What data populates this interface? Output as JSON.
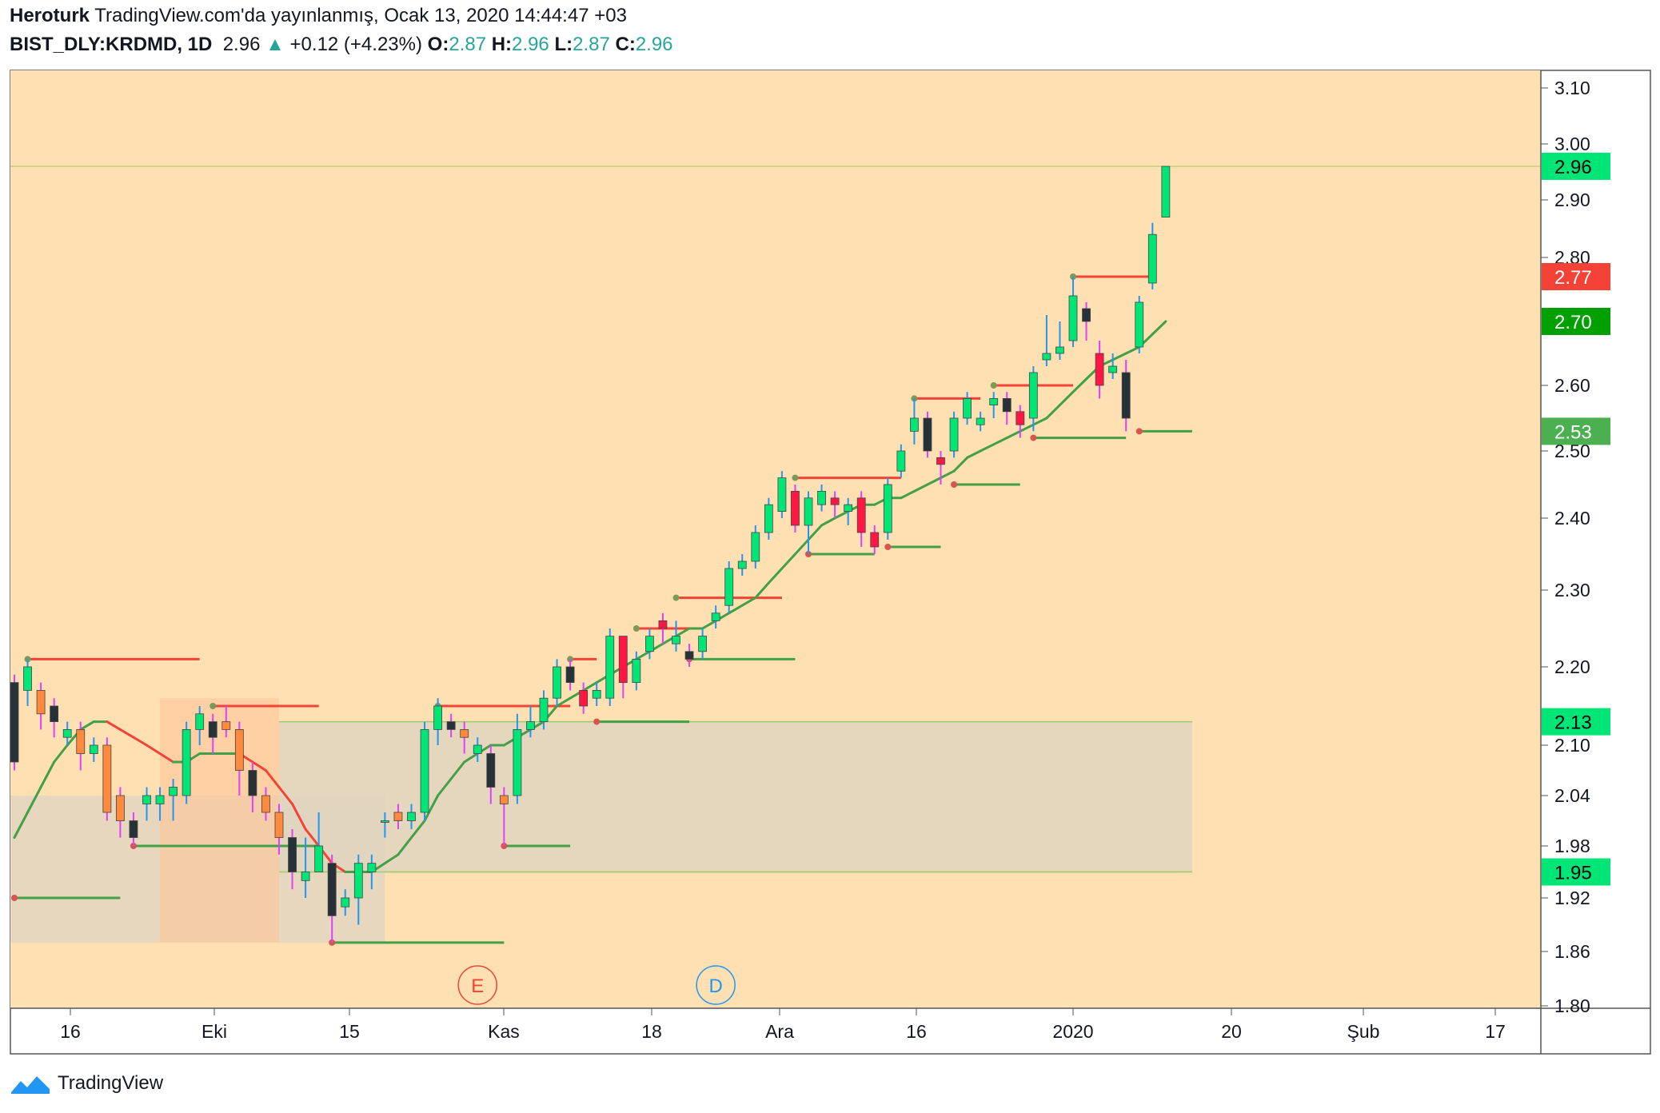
{
  "header": {
    "author": "Heroturk",
    "published": "TradingView.com'da yayınlanmış, Ocak 13, 2020 14:44:47 +03",
    "symbol": "BIST_DLY:KRDMD, 1D",
    "last": "2.96",
    "change": "+0.12 (+4.23%)",
    "o_label": "O:",
    "o_value": "2.87",
    "h_label": "H:",
    "h_value": "2.96",
    "l_label": "L:",
    "l_value": "2.87",
    "c_label": "C:",
    "c_value": "2.96"
  },
  "footer": {
    "brand": "TradingView"
  },
  "colors": {
    "background": "#ffe0b2",
    "up": "#00e676",
    "down_pink": "#ff1744",
    "down_orange": "#ff8a3d",
    "dark": "#263238",
    "ma_up": "#43a047",
    "ma_down": "#f44336",
    "resistance": "#f44336",
    "support": "#43a047",
    "zone": "#e0d5c0",
    "orange_zone": "#ffc49a"
  },
  "chart_data": {
    "type": "candlestick",
    "ylim": [
      1.8,
      3.13
    ],
    "y_ticks": [
      "3.10",
      "3.00",
      "2.90",
      "2.80",
      "2.60",
      "2.50",
      "2.40",
      "2.30",
      "2.20",
      "2.10",
      "2.04",
      "1.98",
      "1.92",
      "1.86",
      "1.80"
    ],
    "x_ticks": [
      "16",
      "Eki",
      "15",
      "Kas",
      "18",
      "Ara",
      "16",
      "2020",
      "20",
      "Şub",
      "17"
    ],
    "price_labels": [
      {
        "value": 2.96,
        "text": "2.96",
        "bg": "#00e676"
      },
      {
        "value": 2.77,
        "text": "2.77",
        "bg": "#f44336"
      },
      {
        "value": 2.7,
        "text": "2.70",
        "bg": "#00a000"
      },
      {
        "value": 2.53,
        "text": "2.53",
        "bg": "#4caf50"
      },
      {
        "value": 2.13,
        "text": "2.13",
        "bg": "#00e676"
      },
      {
        "value": 1.95,
        "text": "1.95",
        "bg": "#00e676"
      }
    ],
    "markers": [
      {
        "text": "E",
        "color": "#f44336",
        "x_index": 35
      },
      {
        "text": "D",
        "color": "#2196f3",
        "x_index": 53
      }
    ],
    "candles": [
      [
        2.18,
        2.08,
        2.19,
        2.07
      ],
      [
        2.17,
        2.2,
        2.21,
        2.15
      ],
      [
        2.17,
        2.14,
        2.18,
        2.12
      ],
      [
        2.15,
        2.13,
        2.16,
        2.11
      ],
      [
        2.11,
        2.12,
        2.13,
        2.1
      ],
      [
        2.12,
        2.09,
        2.13,
        2.07
      ],
      [
        2.09,
        2.1,
        2.11,
        2.08
      ],
      [
        2.1,
        2.02,
        2.11,
        2.01
      ],
      [
        2.04,
        2.01,
        2.05,
        1.99
      ],
      [
        2.01,
        1.99,
        2.02,
        1.98
      ],
      [
        2.03,
        2.04,
        2.05,
        2.01
      ],
      [
        2.03,
        2.04,
        2.05,
        2.01
      ],
      [
        2.04,
        2.05,
        2.06,
        2.01
      ],
      [
        2.04,
        2.12,
        2.13,
        2.03
      ],
      [
        2.12,
        2.14,
        2.15,
        2.1
      ],
      [
        2.13,
        2.11,
        2.14,
        2.09
      ],
      [
        2.13,
        2.12,
        2.15,
        2.11
      ],
      [
        2.12,
        2.07,
        2.13,
        2.04
      ],
      [
        2.07,
        2.04,
        2.08,
        2.02
      ],
      [
        2.04,
        2.02,
        2.05,
        2.01
      ],
      [
        2.02,
        1.99,
        2.03,
        1.97
      ],
      [
        1.99,
        1.95,
        2.0,
        1.93
      ],
      [
        1.94,
        1.95,
        1.99,
        1.92
      ],
      [
        1.95,
        1.98,
        2.02,
        1.96
      ],
      [
        1.96,
        1.9,
        1.97,
        1.87
      ],
      [
        1.91,
        1.92,
        1.93,
        1.9
      ],
      [
        1.92,
        1.96,
        1.97,
        1.89
      ],
      [
        1.95,
        1.96,
        1.97,
        1.93
      ],
      [
        2.01,
        2.01,
        2.02,
        1.99
      ],
      [
        2.02,
        2.01,
        2.03,
        2.0
      ],
      [
        2.01,
        2.02,
        2.03,
        2.0
      ],
      [
        2.02,
        2.12,
        2.13,
        2.01
      ],
      [
        2.12,
        2.15,
        2.16,
        2.1
      ],
      [
        2.13,
        2.12,
        2.14,
        2.11
      ],
      [
        2.12,
        2.11,
        2.13,
        2.09
      ],
      [
        2.09,
        2.1,
        2.11,
        2.08
      ],
      [
        2.09,
        2.05,
        2.1,
        2.03
      ],
      [
        2.04,
        2.03,
        2.05,
        1.98
      ],
      [
        2.04,
        2.12,
        2.14,
        2.03
      ],
      [
        2.12,
        2.13,
        2.15,
        2.11
      ],
      [
        2.13,
        2.16,
        2.17,
        2.12
      ],
      [
        2.16,
        2.2,
        2.21,
        2.15
      ],
      [
        2.2,
        2.18,
        2.21,
        2.17
      ],
      [
        2.17,
        2.15,
        2.18,
        2.14
      ],
      [
        2.16,
        2.17,
        2.18,
        2.15
      ],
      [
        2.16,
        2.24,
        2.25,
        2.15
      ],
      [
        2.24,
        2.18,
        2.24,
        2.16
      ],
      [
        2.18,
        2.21,
        2.22,
        2.17
      ],
      [
        2.22,
        2.24,
        2.25,
        2.21
      ],
      [
        2.26,
        2.25,
        2.27,
        2.23
      ],
      [
        2.23,
        2.24,
        2.26,
        2.22
      ],
      [
        2.22,
        2.21,
        2.23,
        2.2
      ],
      [
        2.22,
        2.24,
        2.25,
        2.21
      ],
      [
        2.26,
        2.27,
        2.28,
        2.25
      ],
      [
        2.28,
        2.33,
        2.34,
        2.27
      ],
      [
        2.33,
        2.34,
        2.35,
        2.32
      ],
      [
        2.34,
        2.38,
        2.39,
        2.33
      ],
      [
        2.38,
        2.42,
        2.43,
        2.37
      ],
      [
        2.41,
        2.46,
        2.47,
        2.4
      ],
      [
        2.44,
        2.39,
        2.45,
        2.38
      ],
      [
        2.39,
        2.43,
        2.44,
        2.35
      ],
      [
        2.42,
        2.44,
        2.45,
        2.41
      ],
      [
        2.43,
        2.42,
        2.44,
        2.4
      ],
      [
        2.41,
        2.42,
        2.43,
        2.39
      ],
      [
        2.43,
        2.38,
        2.44,
        2.36
      ],
      [
        2.38,
        2.36,
        2.39,
        2.35
      ],
      [
        2.38,
        2.45,
        2.46,
        2.37
      ],
      [
        2.47,
        2.5,
        2.51,
        2.46
      ],
      [
        2.53,
        2.55,
        2.58,
        2.51
      ],
      [
        2.55,
        2.5,
        2.56,
        2.49
      ],
      [
        2.49,
        2.48,
        2.5,
        2.45
      ],
      [
        2.5,
        2.55,
        2.56,
        2.49
      ],
      [
        2.55,
        2.58,
        2.59,
        2.54
      ],
      [
        2.54,
        2.55,
        2.56,
        2.53
      ],
      [
        2.57,
        2.58,
        2.59,
        2.55
      ],
      [
        2.58,
        2.56,
        2.59,
        2.54
      ],
      [
        2.56,
        2.54,
        2.57,
        2.52
      ],
      [
        2.55,
        2.62,
        2.63,
        2.53
      ],
      [
        2.64,
        2.65,
        2.71,
        2.63
      ],
      [
        2.65,
        2.66,
        2.7,
        2.64
      ],
      [
        2.67,
        2.74,
        2.77,
        2.66
      ],
      [
        2.72,
        2.7,
        2.73,
        2.67
      ],
      [
        2.65,
        2.6,
        2.67,
        2.58
      ],
      [
        2.62,
        2.63,
        2.65,
        2.61
      ],
      [
        2.62,
        2.55,
        2.64,
        2.53
      ],
      [
        2.66,
        2.73,
        2.74,
        2.65
      ],
      [
        2.76,
        2.84,
        2.86,
        2.75
      ],
      [
        2.87,
        2.96,
        2.96,
        2.87
      ]
    ],
    "ma_values": [
      1.99,
      2.02,
      2.05,
      2.08,
      2.1,
      2.12,
      2.13,
      2.13,
      2.12,
      2.11,
      2.1,
      2.09,
      2.08,
      2.08,
      2.09,
      2.09,
      2.09,
      2.09,
      2.08,
      2.07,
      2.05,
      2.03,
      2.0,
      1.98,
      1.96,
      1.95,
      1.95,
      1.95,
      1.96,
      1.97,
      1.99,
      2.01,
      2.04,
      2.06,
      2.08,
      2.09,
      2.1,
      2.1,
      2.11,
      2.12,
      2.13,
      2.15,
      2.16,
      2.17,
      2.18,
      2.19,
      2.2,
      2.21,
      2.22,
      2.23,
      2.24,
      2.25,
      2.25,
      2.26,
      2.27,
      2.28,
      2.29,
      2.31,
      2.33,
      2.35,
      2.37,
      2.39,
      2.4,
      2.41,
      2.42,
      2.42,
      2.43,
      2.43,
      2.44,
      2.45,
      2.46,
      2.47,
      2.49,
      2.5,
      2.51,
      2.52,
      2.53,
      2.54,
      2.55,
      2.57,
      2.59,
      2.61,
      2.63,
      2.64,
      2.65,
      2.66,
      2.68,
      2.7
    ]
  }
}
